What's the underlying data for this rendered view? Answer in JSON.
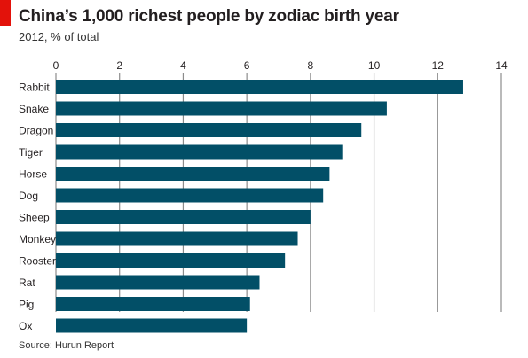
{
  "chart_data": {
    "type": "bar",
    "orientation": "horizontal",
    "title": "China’s 1,000 richest people by zodiac birth year",
    "subtitle": "2012, % of total",
    "source": "Source: Hurun Report",
    "categories": [
      "Rabbit",
      "Snake",
      "Dragon",
      "Tiger",
      "Horse",
      "Dog",
      "Sheep",
      "Monkey",
      "Rooster",
      "Rat",
      "Pig",
      "Ox"
    ],
    "values": [
      12.8,
      10.4,
      9.6,
      9.0,
      8.6,
      8.4,
      8.0,
      7.6,
      7.2,
      6.4,
      6.1,
      6.0
    ],
    "xlim": [
      0,
      14
    ],
    "xticks": [
      0,
      2,
      4,
      6,
      8,
      10,
      12,
      14
    ],
    "xtick_labels": [
      "0",
      "2",
      "4",
      "6",
      "8",
      "10",
      "12",
      "14"
    ],
    "grid": "vertical",
    "axis_position": "top",
    "colors": {
      "bar": "#024f67",
      "accent": "#e3120b",
      "grid": "#8c8c8c"
    }
  }
}
